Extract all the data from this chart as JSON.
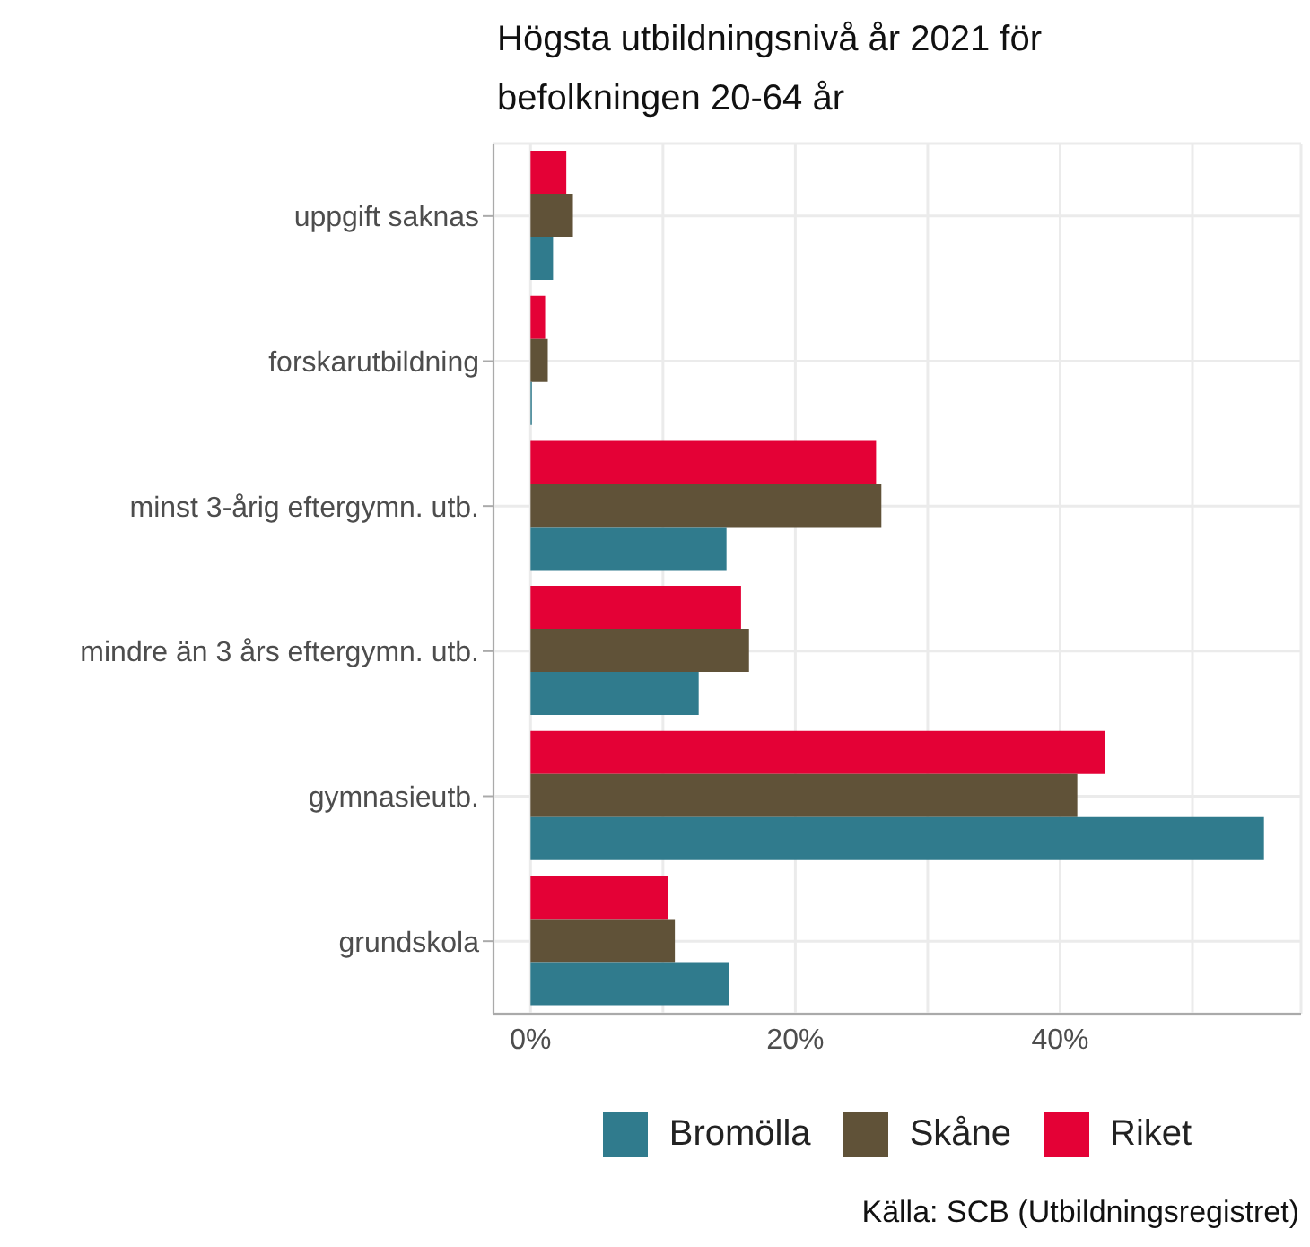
{
  "chart_data": {
    "type": "bar",
    "orientation": "horizontal",
    "title": "Högsta utbildningsnivå år 2021 för befolkningen 20-64 år",
    "categories": [
      "uppgift saknas",
      "forskarutbildning",
      "minst 3-årig eftergymn. utb.",
      "mindre än 3 års eftergymn. utb.",
      "gymnasieutb.",
      "grundskola"
    ],
    "series": [
      {
        "name": "Bromölla",
        "color": "#307b8d",
        "values": [
          1.7,
          0.1,
          14.8,
          12.7,
          55.4,
          15.0
        ]
      },
      {
        "name": "Skåne",
        "color": "#605238",
        "values": [
          3.2,
          1.3,
          26.5,
          16.5,
          41.3,
          10.9
        ]
      },
      {
        "name": "Riket",
        "color": "#e40136",
        "values": [
          2.7,
          1.1,
          26.1,
          15.9,
          43.4,
          10.4
        ]
      }
    ],
    "xlim": [
      -2.8,
      58.2
    ],
    "xticks": [
      {
        "value": 0,
        "label": "0%"
      },
      {
        "value": 10,
        "label": null
      },
      {
        "value": 20,
        "label": "20%"
      },
      {
        "value": 30,
        "label": null
      },
      {
        "value": 40,
        "label": "40%"
      },
      {
        "value": 50,
        "label": null
      }
    ],
    "grid": true,
    "legend": "bottom",
    "annotations": [
      "Källa: SCB (Utbildningsregistret)"
    ]
  }
}
